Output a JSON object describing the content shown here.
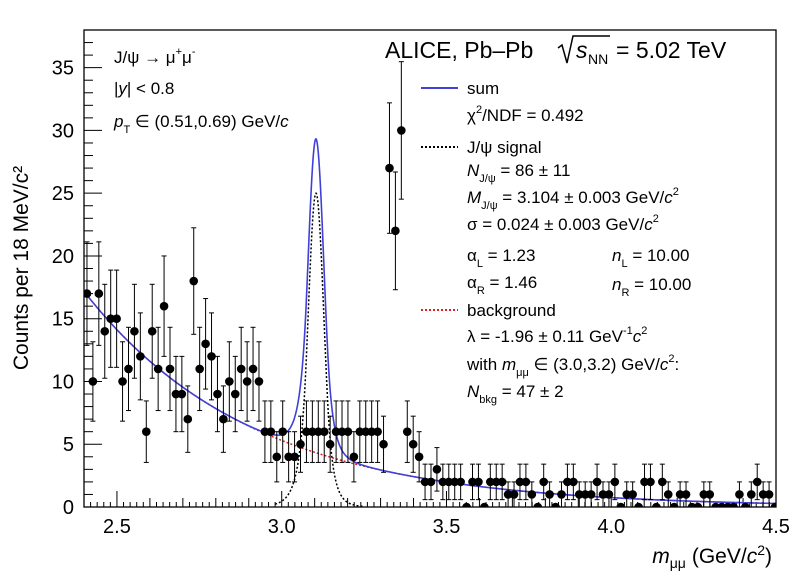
{
  "chart_data": {
    "type": "scatter",
    "title": "ALICE, Pb–Pb √s_NN = 5.02 TeV",
    "title_parts": {
      "experiment": "ALICE, Pb–Pb",
      "sqrt": "√",
      "s": "s",
      "nn": "NN",
      "energy": "= 5.02 TeV"
    },
    "xlabel": {
      "m": "m",
      "sub": "μμ",
      "unit": "(GeV/",
      "c": "c",
      "sup": "2",
      "close": ")"
    },
    "ylabel": "Counts per 18 MeV/c²",
    "xlim": [
      2.4,
      4.5
    ],
    "ylim": [
      0,
      38
    ],
    "x_ticks": [
      "2.5",
      "3.0",
      "3.5",
      "4.0",
      "4.5"
    ],
    "y_ticks": [
      "0",
      "5",
      "10",
      "15",
      "20",
      "25",
      "30",
      "35"
    ],
    "selection": {
      "decay": "J/ψ → μ⁺μ⁻",
      "rapidity": "|y| < 0.8",
      "pt": "p_T ∈ (0.51,0.69) GeV/c"
    },
    "legend": {
      "sum": "sum",
      "chi2": "χ²/NDF = 0.492",
      "signal": "J/ψ signal",
      "n_jpsi": "N_J/ψ = 86 ± 11",
      "m_jpsi": "M_J/ψ = 3.104 ± 0.003 GeV/c²",
      "sigma": "σ = 0.024 ± 0.003 GeV/c²",
      "alpha_l": "α_L = 1.23",
      "n_l": "n_L = 10.00",
      "alpha_r": "α_R = 1.46",
      "n_r": "n_R = 10.00",
      "background": "background",
      "lambda": "λ = -1.96 ± 0.11 GeV⁻¹c²",
      "window": "with m_μμ ∈ (3.0,3.2) GeV/c²:",
      "n_bkg": "N_bkg = 47 ± 2"
    },
    "colors": {
      "sum": "#4040d8",
      "signal": "#000000",
      "background": "#e02020",
      "data": "#000000"
    },
    "fit": {
      "amplitude": 25,
      "mean": 3.104,
      "sigma": 0.024,
      "alpha_l": 1.23,
      "n_l": 10.0,
      "alpha_r": 1.46,
      "n_r": 10.0,
      "bkg_norm": 5.3,
      "lambda": -1.96,
      "bkg_ref": 3.0
    },
    "bin_width": 0.018,
    "y": [
      17,
      10,
      17,
      14,
      15,
      15,
      10,
      11,
      14,
      12,
      6,
      14,
      11,
      16,
      11,
      9,
      9,
      7,
      18,
      11,
      13,
      12,
      9,
      7,
      10,
      9,
      11,
      10,
      11,
      10,
      6,
      6,
      4,
      6,
      4,
      4,
      5,
      6,
      6,
      6,
      6,
      5,
      6,
      6,
      6,
      4,
      6,
      6,
      6,
      6,
      5,
      27,
      22,
      30,
      6,
      5,
      4,
      2,
      2,
      3,
      2,
      2,
      2,
      2,
      0,
      2,
      2,
      0,
      2,
      2,
      2,
      1,
      1,
      2,
      2,
      1,
      0,
      2,
      1,
      0,
      1,
      2,
      2,
      1,
      1,
      1,
      2,
      1,
      1,
      2,
      0,
      1,
      1,
      0,
      2,
      2,
      0,
      2,
      1,
      0,
      1,
      1,
      0,
      0,
      1,
      1,
      0,
      0,
      0,
      0,
      1,
      0,
      1,
      2,
      1,
      1,
      0,
      0,
      1,
      1
    ]
  }
}
